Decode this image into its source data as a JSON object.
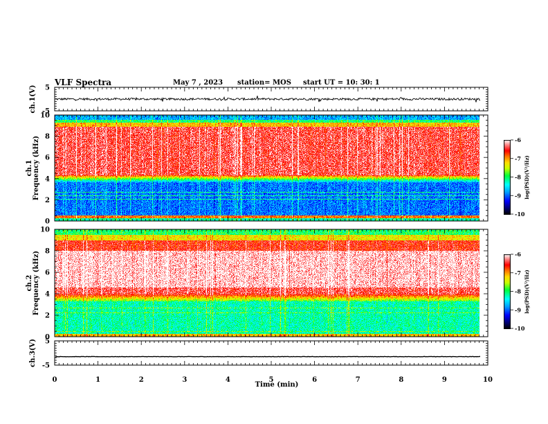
{
  "header": {
    "title": "VLF Spectra",
    "date": "May 7 , 2023",
    "station": "station= MOS",
    "start": "start  UT =   10: 30: 1"
  },
  "chart_data": [
    {
      "type": "line",
      "name": "ch1-waveform",
      "ylabel": "ch.1(V)",
      "ylim": [
        -5,
        5
      ],
      "yticks": [
        5,
        -5
      ],
      "xlim": [
        0,
        10
      ],
      "level": 0
    },
    {
      "type": "heatmap",
      "name": "ch1-spectrogram",
      "ylabel": "ch.1\nFrequency (kHz)",
      "ylim": [
        0,
        10
      ],
      "yticks": [
        0,
        2,
        4,
        6,
        8,
        10
      ],
      "xlim": [
        0,
        9.83
      ],
      "colorbar": {
        "label": "log(PSD)(V²/Hz)",
        "ticks": [
          -6,
          -7,
          -8,
          -9,
          -10
        ],
        "range": [
          -10,
          -6
        ]
      }
    },
    {
      "type": "heatmap",
      "name": "ch2-spectrogram",
      "ylabel": "ch.2\nFrequency (kHz)",
      "ylim": [
        0,
        10
      ],
      "yticks": [
        0,
        2,
        4,
        6,
        8,
        10
      ],
      "xlim": [
        0,
        9.83
      ],
      "colorbar": {
        "label": "log(PSD)(V²/Hz)",
        "ticks": [
          -6,
          -7,
          -8,
          -9,
          -10
        ],
        "range": [
          -10,
          -6
        ]
      }
    },
    {
      "type": "line",
      "name": "ch3-waveform",
      "ylabel": "ch.3(V)",
      "ylim": [
        -5,
        5
      ],
      "yticks": [
        5,
        -5
      ],
      "xlim": [
        0,
        10
      ],
      "level": -1.5
    }
  ],
  "xaxis": {
    "label": "Time  (min)",
    "ticks": [
      0,
      1,
      2,
      3,
      4,
      5,
      6,
      7,
      8,
      9,
      10
    ],
    "range": [
      0,
      10
    ]
  }
}
